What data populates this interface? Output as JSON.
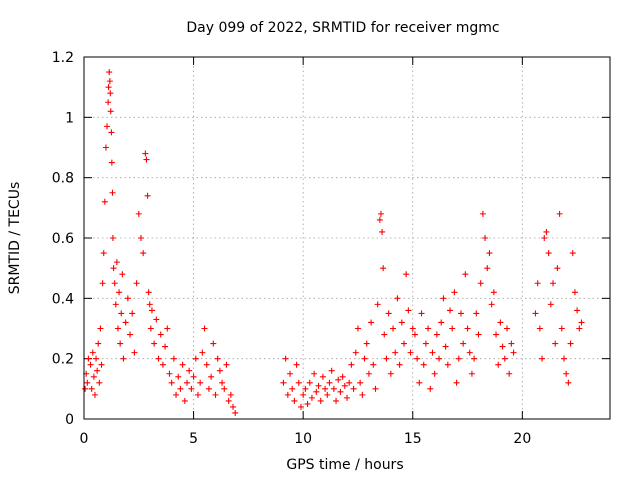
{
  "chart_data": {
    "type": "scatter",
    "title": "Day 099 of 2022, SRMTID for receiver mgmc",
    "xlabel": "GPS time / hours",
    "ylabel": "SRMTID / TECUs",
    "xlim": [
      0,
      24
    ],
    "ylim": [
      0,
      1.2
    ],
    "xticks": [
      0,
      5,
      10,
      15,
      20
    ],
    "xtick_labels": [
      "0",
      "5",
      "10",
      "15",
      "20"
    ],
    "yticks": [
      0,
      0.2,
      0.4,
      0.6,
      0.8,
      1.0,
      1.2
    ],
    "ytick_labels": [
      "0",
      "0.2",
      "0.4",
      "0.6",
      "0.8",
      "1",
      "1.2"
    ],
    "grid": true,
    "marker": "plus",
    "series": [
      {
        "name": "SRMTID",
        "color": "#ff0000",
        "x": [
          0.05,
          0.1,
          0.15,
          0.2,
          0.3,
          0.35,
          0.4,
          0.45,
          0.5,
          0.55,
          0.6,
          0.65,
          0.7,
          0.75,
          0.8,
          0.85,
          0.9,
          0.95,
          1.0,
          1.05,
          1.1,
          1.12,
          1.15,
          1.18,
          1.2,
          1.22,
          1.25,
          1.27,
          1.3,
          1.32,
          1.35,
          1.4,
          1.45,
          1.5,
          1.55,
          1.6,
          1.65,
          1.7,
          1.75,
          1.8,
          1.9,
          2.0,
          2.1,
          2.2,
          2.3,
          2.4,
          2.5,
          2.6,
          2.7,
          2.8,
          2.85,
          2.9,
          2.95,
          3.0,
          3.05,
          3.1,
          3.2,
          3.3,
          3.4,
          3.5,
          3.6,
          3.7,
          3.8,
          3.9,
          4.0,
          4.1,
          4.2,
          4.3,
          4.4,
          4.5,
          4.6,
          4.7,
          4.8,
          4.9,
          5.0,
          5.1,
          5.2,
          5.3,
          5.4,
          5.5,
          5.6,
          5.7,
          5.8,
          5.9,
          6.0,
          6.1,
          6.2,
          6.3,
          6.4,
          6.5,
          6.6,
          6.7,
          6.8,
          6.9,
          9.1,
          9.2,
          9.3,
          9.4,
          9.5,
          9.6,
          9.7,
          9.8,
          9.9,
          10.0,
          10.1,
          10.2,
          10.3,
          10.4,
          10.5,
          10.6,
          10.7,
          10.8,
          10.9,
          11.0,
          11.1,
          11.2,
          11.3,
          11.4,
          11.5,
          11.6,
          11.7,
          11.8,
          11.9,
          12.0,
          12.1,
          12.2,
          12.3,
          12.4,
          12.5,
          12.6,
          12.7,
          12.8,
          12.9,
          13.0,
          13.1,
          13.2,
          13.3,
          13.4,
          13.5,
          13.55,
          13.6,
          13.65,
          13.7,
          13.8,
          13.9,
          14.0,
          14.1,
          14.2,
          14.3,
          14.4,
          14.5,
          14.6,
          14.7,
          14.8,
          14.9,
          15.0,
          15.1,
          15.2,
          15.3,
          15.4,
          15.5,
          15.6,
          15.7,
          15.8,
          15.9,
          16.0,
          16.1,
          16.2,
          16.3,
          16.4,
          16.5,
          16.6,
          16.7,
          16.8,
          16.9,
          17.0,
          17.1,
          17.2,
          17.3,
          17.4,
          17.5,
          17.6,
          17.7,
          17.8,
          17.9,
          18.0,
          18.1,
          18.2,
          18.3,
          18.4,
          18.5,
          18.6,
          18.7,
          18.8,
          18.9,
          19.0,
          19.1,
          19.2,
          19.3,
          19.4,
          19.5,
          19.6,
          20.6,
          20.7,
          20.8,
          20.9,
          21.0,
          21.1,
          21.2,
          21.3,
          21.4,
          21.5,
          21.6,
          21.7,
          21.8,
          21.9,
          22.0,
          22.1,
          22.2,
          22.3,
          22.4,
          22.5,
          22.6,
          22.7
        ],
        "y": [
          0.1,
          0.15,
          0.12,
          0.2,
          0.18,
          0.1,
          0.22,
          0.14,
          0.08,
          0.2,
          0.16,
          0.25,
          0.12,
          0.3,
          0.18,
          0.45,
          0.55,
          0.72,
          0.9,
          0.97,
          1.05,
          1.1,
          1.15,
          1.12,
          1.08,
          1.02,
          0.95,
          0.85,
          0.75,
          0.6,
          0.5,
          0.45,
          0.38,
          0.52,
          0.3,
          0.42,
          0.25,
          0.35,
          0.48,
          0.2,
          0.32,
          0.4,
          0.28,
          0.35,
          0.22,
          0.45,
          0.68,
          0.6,
          0.55,
          0.88,
          0.86,
          0.74,
          0.42,
          0.38,
          0.3,
          0.36,
          0.25,
          0.33,
          0.2,
          0.28,
          0.18,
          0.24,
          0.3,
          0.15,
          0.12,
          0.2,
          0.08,
          0.14,
          0.1,
          0.18,
          0.06,
          0.12,
          0.16,
          0.1,
          0.14,
          0.2,
          0.08,
          0.12,
          0.22,
          0.3,
          0.18,
          0.1,
          0.14,
          0.25,
          0.08,
          0.2,
          0.16,
          0.12,
          0.1,
          0.18,
          0.06,
          0.08,
          0.04,
          0.02,
          0.12,
          0.2,
          0.08,
          0.15,
          0.1,
          0.06,
          0.18,
          0.12,
          0.04,
          0.08,
          0.1,
          0.05,
          0.12,
          0.07,
          0.15,
          0.09,
          0.11,
          0.06,
          0.14,
          0.1,
          0.08,
          0.12,
          0.16,
          0.1,
          0.06,
          0.13,
          0.09,
          0.14,
          0.11,
          0.07,
          0.12,
          0.18,
          0.1,
          0.22,
          0.3,
          0.12,
          0.08,
          0.2,
          0.25,
          0.15,
          0.32,
          0.18,
          0.1,
          0.38,
          0.66,
          0.68,
          0.62,
          0.5,
          0.28,
          0.2,
          0.35,
          0.15,
          0.3,
          0.22,
          0.4,
          0.18,
          0.32,
          0.25,
          0.48,
          0.36,
          0.22,
          0.3,
          0.28,
          0.2,
          0.12,
          0.35,
          0.18,
          0.25,
          0.3,
          0.1,
          0.22,
          0.15,
          0.28,
          0.2,
          0.32,
          0.4,
          0.24,
          0.18,
          0.36,
          0.3,
          0.42,
          0.12,
          0.2,
          0.35,
          0.25,
          0.48,
          0.3,
          0.22,
          0.15,
          0.2,
          0.35,
          0.28,
          0.45,
          0.68,
          0.6,
          0.5,
          0.55,
          0.38,
          0.42,
          0.28,
          0.18,
          0.32,
          0.24,
          0.2,
          0.3,
          0.15,
          0.25,
          0.22,
          0.35,
          0.45,
          0.3,
          0.2,
          0.6,
          0.62,
          0.55,
          0.38,
          0.45,
          0.25,
          0.5,
          0.68,
          0.3,
          0.2,
          0.15,
          0.12,
          0.25,
          0.55,
          0.42,
          0.36,
          0.3,
          0.32
        ]
      }
    ]
  }
}
